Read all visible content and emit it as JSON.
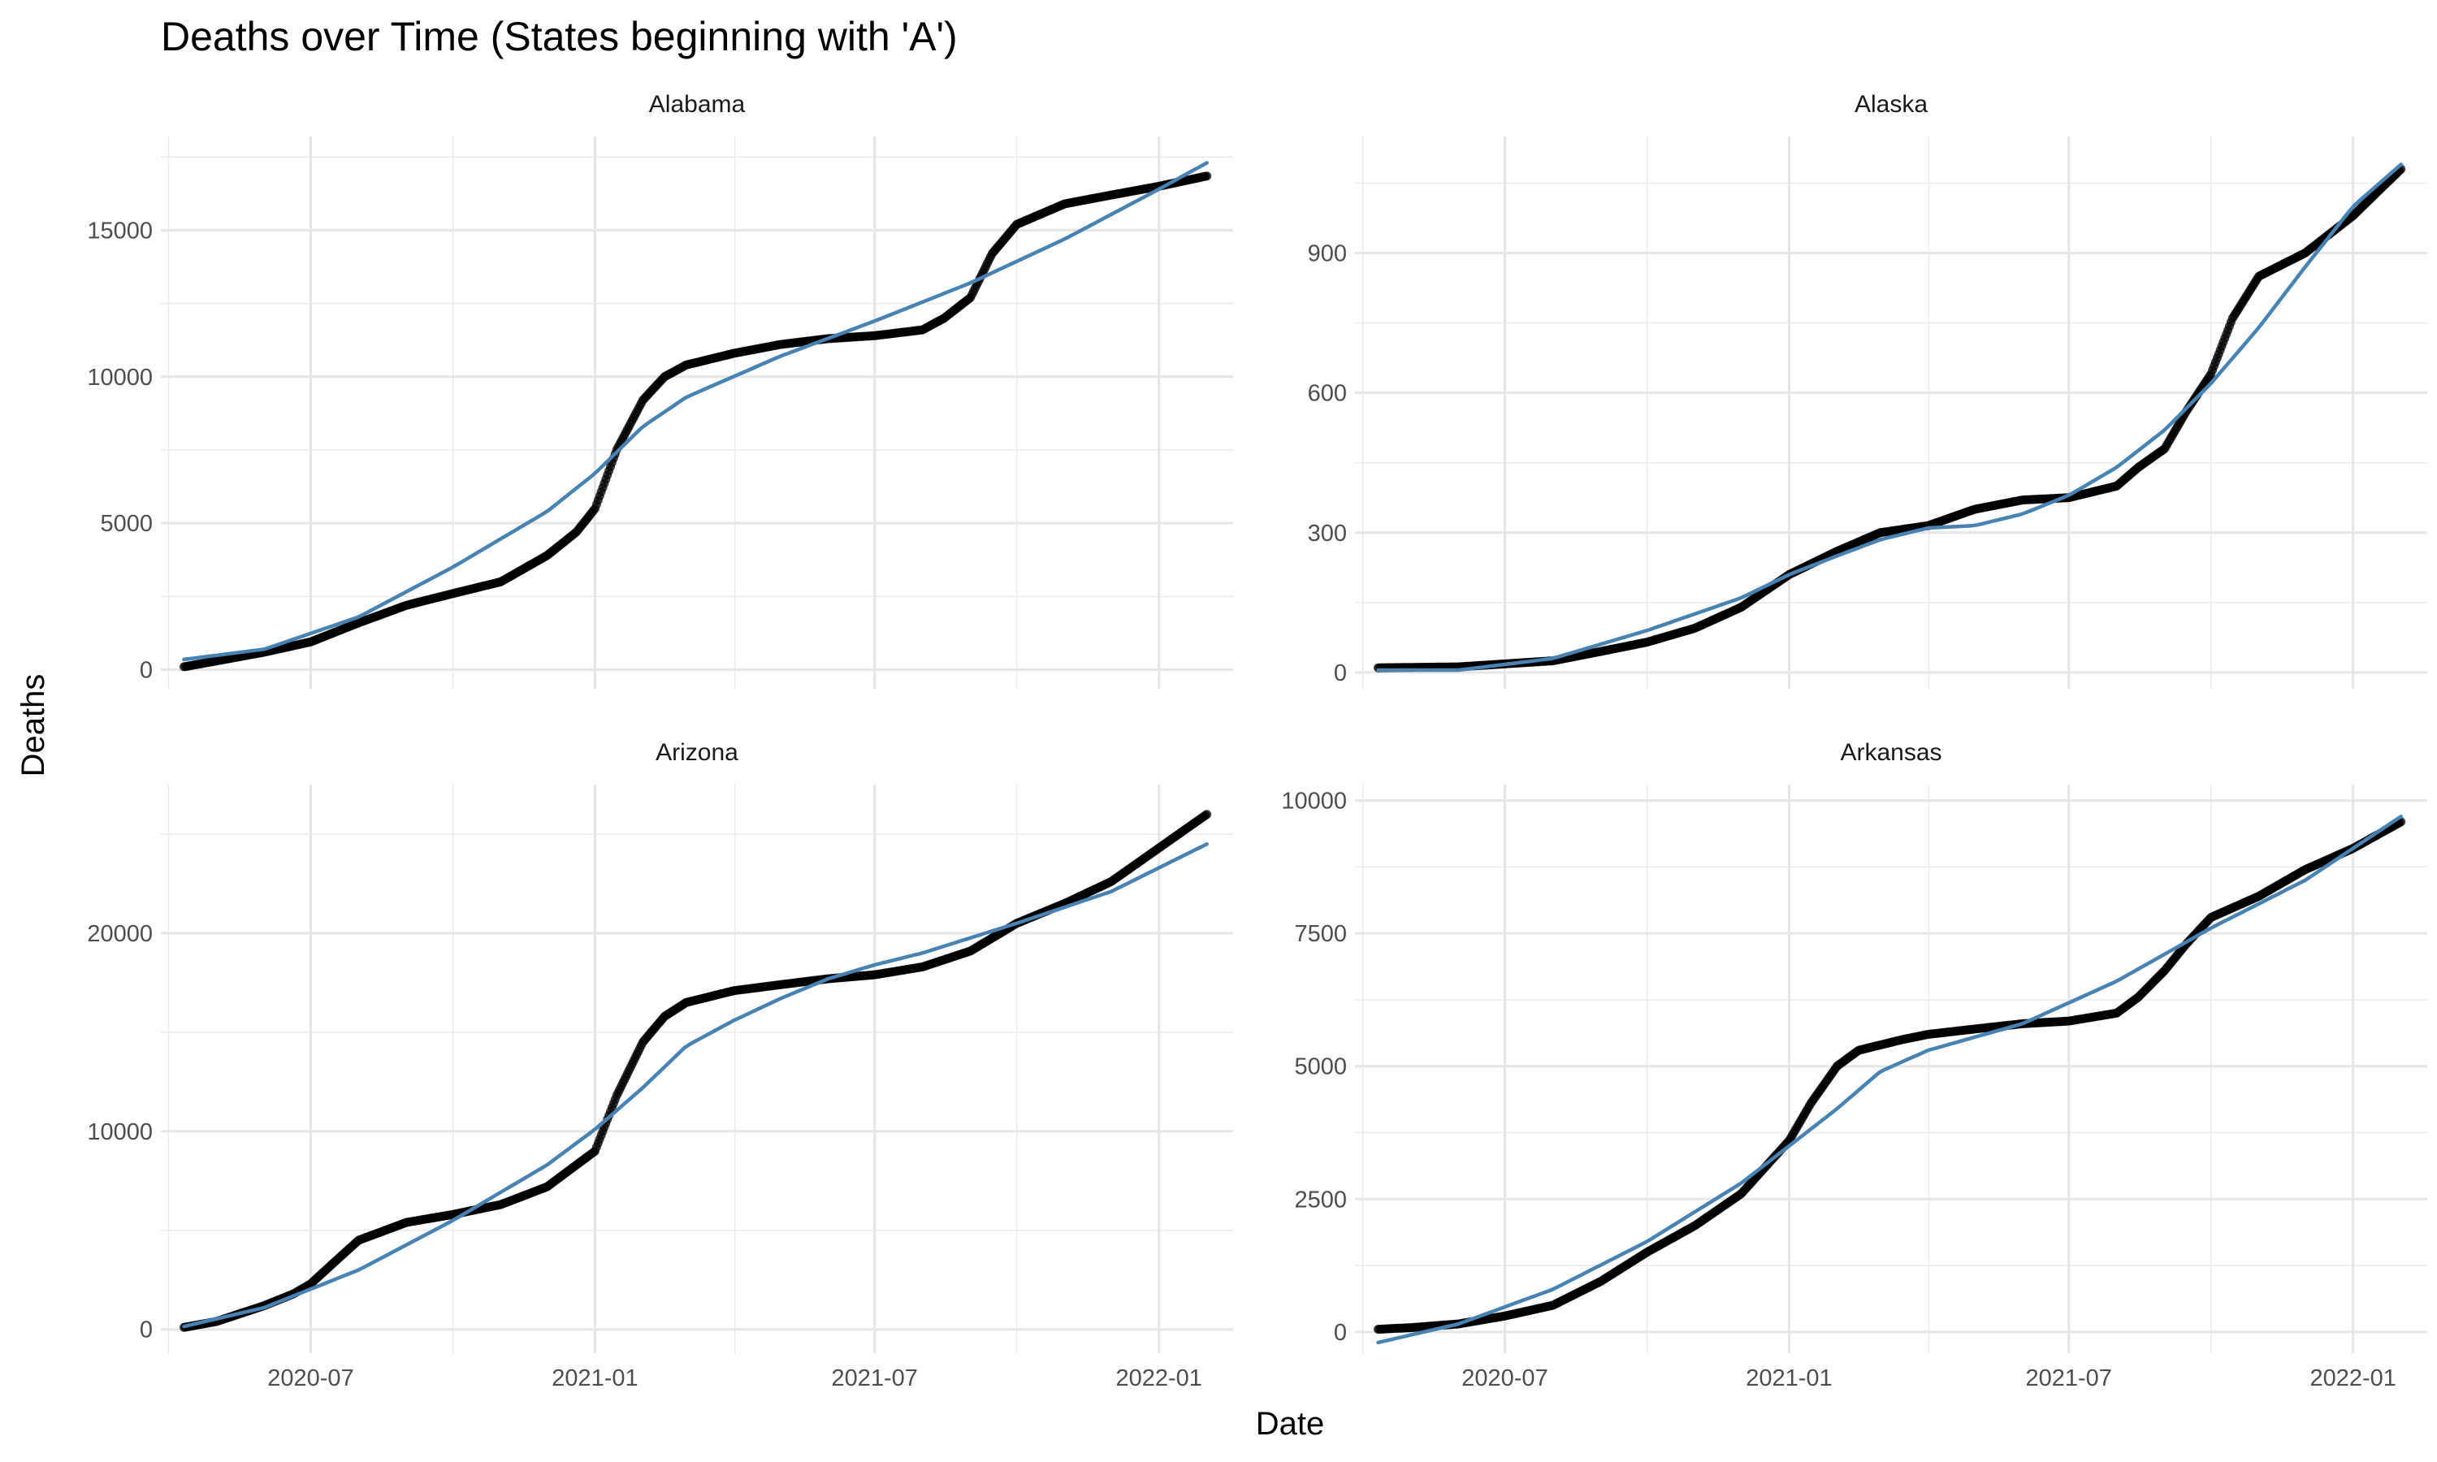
{
  "chart_data": {
    "type": "scatter",
    "title": "Deaths over Time (States beginning with 'A')",
    "xlabel": "Date",
    "ylabel": "Deaths",
    "x_ticks": [
      "2020-07",
      "2021-01",
      "2021-07",
      "2022-01"
    ],
    "xlim": [
      "2020-03-26",
      "2022-02-18"
    ],
    "grid": true,
    "fit_color": "#4682B4",
    "point_color": "#000000",
    "panels": [
      {
        "name": "Alabama",
        "ylim": [
          -650,
          18200
        ],
        "y_ticks": [
          0,
          5000,
          10000,
          15000
        ],
        "y_tick_labels": [
          "0",
          "5000",
          "10000",
          "15000"
        ],
        "observed": {
          "x": [
            "2020-04-10",
            "2020-05-01",
            "2020-06-01",
            "2020-07-01",
            "2020-08-01",
            "2020-09-01",
            "2020-10-01",
            "2020-11-01",
            "2020-12-01",
            "2020-12-20",
            "2021-01-01",
            "2021-01-15",
            "2021-02-01",
            "2021-02-15",
            "2021-03-01",
            "2021-04-01",
            "2021-05-01",
            "2021-06-01",
            "2021-07-01",
            "2021-08-01",
            "2021-08-15",
            "2021-09-01",
            "2021-09-15",
            "2021-10-01",
            "2021-11-01",
            "2021-12-01",
            "2022-01-01",
            "2022-02-01"
          ],
          "y": [
            100,
            300,
            600,
            950,
            1600,
            2200,
            2600,
            3000,
            3900,
            4700,
            5500,
            7500,
            9200,
            10000,
            10400,
            10800,
            11100,
            11300,
            11400,
            11600,
            12000,
            12700,
            14200,
            15200,
            15900,
            16200,
            16500,
            16850
          ]
        },
        "fit": {
          "x": [
            "2020-04-10",
            "2020-06-01",
            "2020-08-01",
            "2020-10-01",
            "2020-12-01",
            "2021-01-01",
            "2021-02-01",
            "2021-03-01",
            "2021-05-01",
            "2021-07-01",
            "2021-09-01",
            "2021-11-01",
            "2022-01-01",
            "2022-02-01"
          ],
          "y": [
            350,
            700,
            1800,
            3500,
            5400,
            6700,
            8300,
            9300,
            10700,
            11900,
            13200,
            14700,
            16400,
            17300
          ]
        }
      },
      {
        "name": "Alaska",
        "ylim": [
          -35,
          1150
        ],
        "y_ticks": [
          0,
          300,
          600,
          900
        ],
        "y_tick_labels": [
          "0",
          "300",
          "600",
          "900"
        ],
        "observed": {
          "x": [
            "2020-04-10",
            "2020-06-01",
            "2020-08-01",
            "2020-09-01",
            "2020-10-01",
            "2020-11-01",
            "2020-12-01",
            "2021-01-01",
            "2021-02-01",
            "2021-03-01",
            "2021-04-01",
            "2021-05-01",
            "2021-06-01",
            "2021-07-01",
            "2021-08-01",
            "2021-08-15",
            "2021-09-01",
            "2021-09-15",
            "2021-10-01",
            "2021-10-15",
            "2021-11-01",
            "2021-12-01",
            "2022-01-01",
            "2022-02-01"
          ],
          "y": [
            10,
            12,
            25,
            45,
            65,
            95,
            140,
            210,
            260,
            300,
            315,
            350,
            370,
            375,
            400,
            440,
            480,
            560,
            640,
            760,
            850,
            900,
            980,
            1080
          ]
        },
        "fit": {
          "x": [
            "2020-04-10",
            "2020-06-01",
            "2020-08-01",
            "2020-10-01",
            "2020-12-01",
            "2021-01-01",
            "2021-02-01",
            "2021-03-01",
            "2021-04-01",
            "2021-05-01",
            "2021-06-01",
            "2021-07-01",
            "2021-08-01",
            "2021-09-01",
            "2021-10-01",
            "2021-11-01",
            "2021-12-01",
            "2022-01-01",
            "2022-02-01"
          ],
          "y": [
            5,
            5,
            30,
            90,
            160,
            210,
            250,
            285,
            310,
            315,
            340,
            380,
            440,
            520,
            620,
            740,
            870,
            1000,
            1090
          ]
        }
      },
      {
        "name": "Arizona",
        "ylim": [
          -1200,
          27500
        ],
        "y_ticks": [
          0,
          10000,
          20000
        ],
        "y_tick_labels": [
          "0",
          "10000",
          "20000"
        ],
        "observed": {
          "x": [
            "2020-04-10",
            "2020-05-01",
            "2020-06-01",
            "2020-06-20",
            "2020-07-01",
            "2020-07-15",
            "2020-08-01",
            "2020-09-01",
            "2020-10-01",
            "2020-11-01",
            "2020-12-01",
            "2021-01-01",
            "2021-01-15",
            "2021-02-01",
            "2021-02-15",
            "2021-03-01",
            "2021-04-01",
            "2021-05-01",
            "2021-06-01",
            "2021-07-01",
            "2021-08-01",
            "2021-09-01",
            "2021-10-01",
            "2021-11-01",
            "2021-12-01",
            "2022-01-01",
            "2022-02-01"
          ],
          "y": [
            100,
            400,
            1200,
            1800,
            2300,
            3300,
            4500,
            5400,
            5800,
            6300,
            7200,
            9000,
            11800,
            14500,
            15800,
            16500,
            17100,
            17400,
            17700,
            17900,
            18300,
            19100,
            20500,
            21500,
            22600,
            24300,
            26000
          ]
        },
        "fit": {
          "x": [
            "2020-04-10",
            "2020-06-01",
            "2020-08-01",
            "2020-10-01",
            "2020-12-01",
            "2021-01-01",
            "2021-02-01",
            "2021-03-01",
            "2021-04-01",
            "2021-05-01",
            "2021-06-01",
            "2021-07-01",
            "2021-08-01",
            "2021-10-01",
            "2021-12-01",
            "2022-02-01"
          ],
          "y": [
            150,
            1100,
            3000,
            5500,
            8300,
            10100,
            12200,
            14300,
            15600,
            16700,
            17700,
            18400,
            19000,
            20500,
            22100,
            24500
          ]
        }
      },
      {
        "name": "Arkansas",
        "ylim": [
          -400,
          10300
        ],
        "y_ticks": [
          0,
          2500,
          5000,
          7500,
          10000
        ],
        "y_tick_labels": [
          "0",
          "2500",
          "5000",
          "7500",
          "10000"
        ],
        "observed": {
          "x": [
            "2020-04-10",
            "2020-05-01",
            "2020-06-01",
            "2020-07-01",
            "2020-08-01",
            "2020-09-01",
            "2020-10-01",
            "2020-11-01",
            "2020-12-01",
            "2021-01-01",
            "2021-01-15",
            "2021-02-01",
            "2021-02-15",
            "2021-03-01",
            "2021-03-15",
            "2021-04-01",
            "2021-05-01",
            "2021-06-01",
            "2021-07-01",
            "2021-08-01",
            "2021-08-15",
            "2021-09-01",
            "2021-09-15",
            "2021-10-01",
            "2021-11-01",
            "2021-12-01",
            "2022-01-01",
            "2022-02-01"
          ],
          "y": [
            50,
            80,
            150,
            300,
            500,
            950,
            1500,
            2000,
            2600,
            3600,
            4300,
            5000,
            5300,
            5400,
            5500,
            5600,
            5700,
            5800,
            5850,
            6000,
            6300,
            6800,
            7300,
            7800,
            8200,
            8700,
            9100,
            9600
          ]
        },
        "fit": {
          "x": [
            "2020-04-10",
            "2020-06-01",
            "2020-08-01",
            "2020-10-01",
            "2020-12-01",
            "2021-01-01",
            "2021-02-01",
            "2021-03-01",
            "2021-04-01",
            "2021-06-01",
            "2021-08-01",
            "2021-10-01",
            "2021-12-01",
            "2022-02-01"
          ],
          "y": [
            -200,
            150,
            800,
            1700,
            2800,
            3500,
            4200,
            4900,
            5300,
            5800,
            6600,
            7600,
            8500,
            9700
          ]
        }
      }
    ]
  }
}
